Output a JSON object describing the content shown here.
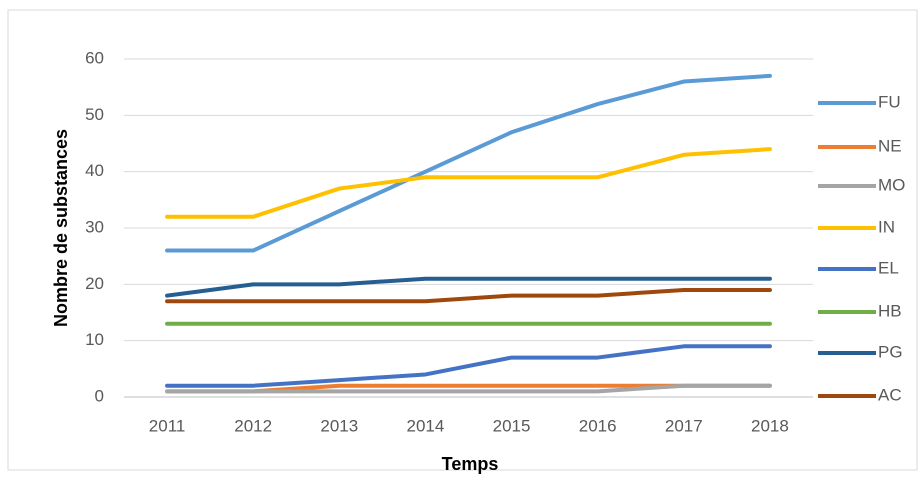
{
  "chart_data": {
    "type": "line",
    "x_label": "Temps",
    "y_label": "Nombre de substances",
    "categories": [
      "2011",
      "2012",
      "2013",
      "2014",
      "2015",
      "2016",
      "2017",
      "2018"
    ],
    "series": [
      {
        "name": "FU",
        "color": "#5b9bd5",
        "values": [
          26,
          26,
          33,
          40,
          47,
          52,
          56,
          57
        ]
      },
      {
        "name": "NE",
        "color": "#ed7d31",
        "values": [
          1,
          1,
          2,
          2,
          2,
          2,
          2,
          2
        ]
      },
      {
        "name": "MO",
        "color": "#a5a5a5",
        "values": [
          1,
          1,
          1,
          1,
          1,
          1,
          2,
          2
        ]
      },
      {
        "name": "IN",
        "color": "#ffc000",
        "values": [
          32,
          32,
          37,
          39,
          39,
          39,
          43,
          44
        ]
      },
      {
        "name": "EL",
        "color": "#4472c4",
        "values": [
          2,
          2,
          3,
          4,
          7,
          7,
          9,
          9
        ]
      },
      {
        "name": "HB",
        "color": "#70ad47",
        "values": [
          13,
          13,
          13,
          13,
          13,
          13,
          13,
          13
        ]
      },
      {
        "name": "PG",
        "color": "#255e91",
        "values": [
          18,
          20,
          20,
          21,
          21,
          21,
          21,
          21
        ]
      },
      {
        "name": "AC",
        "color": "#9e480e",
        "values": [
          17,
          17,
          17,
          17,
          18,
          18,
          19,
          19
        ]
      }
    ],
    "ylim": [
      0,
      60
    ],
    "yticks": [
      0,
      10,
      20,
      30,
      40,
      50,
      60
    ],
    "grid": true,
    "legend": "right"
  }
}
